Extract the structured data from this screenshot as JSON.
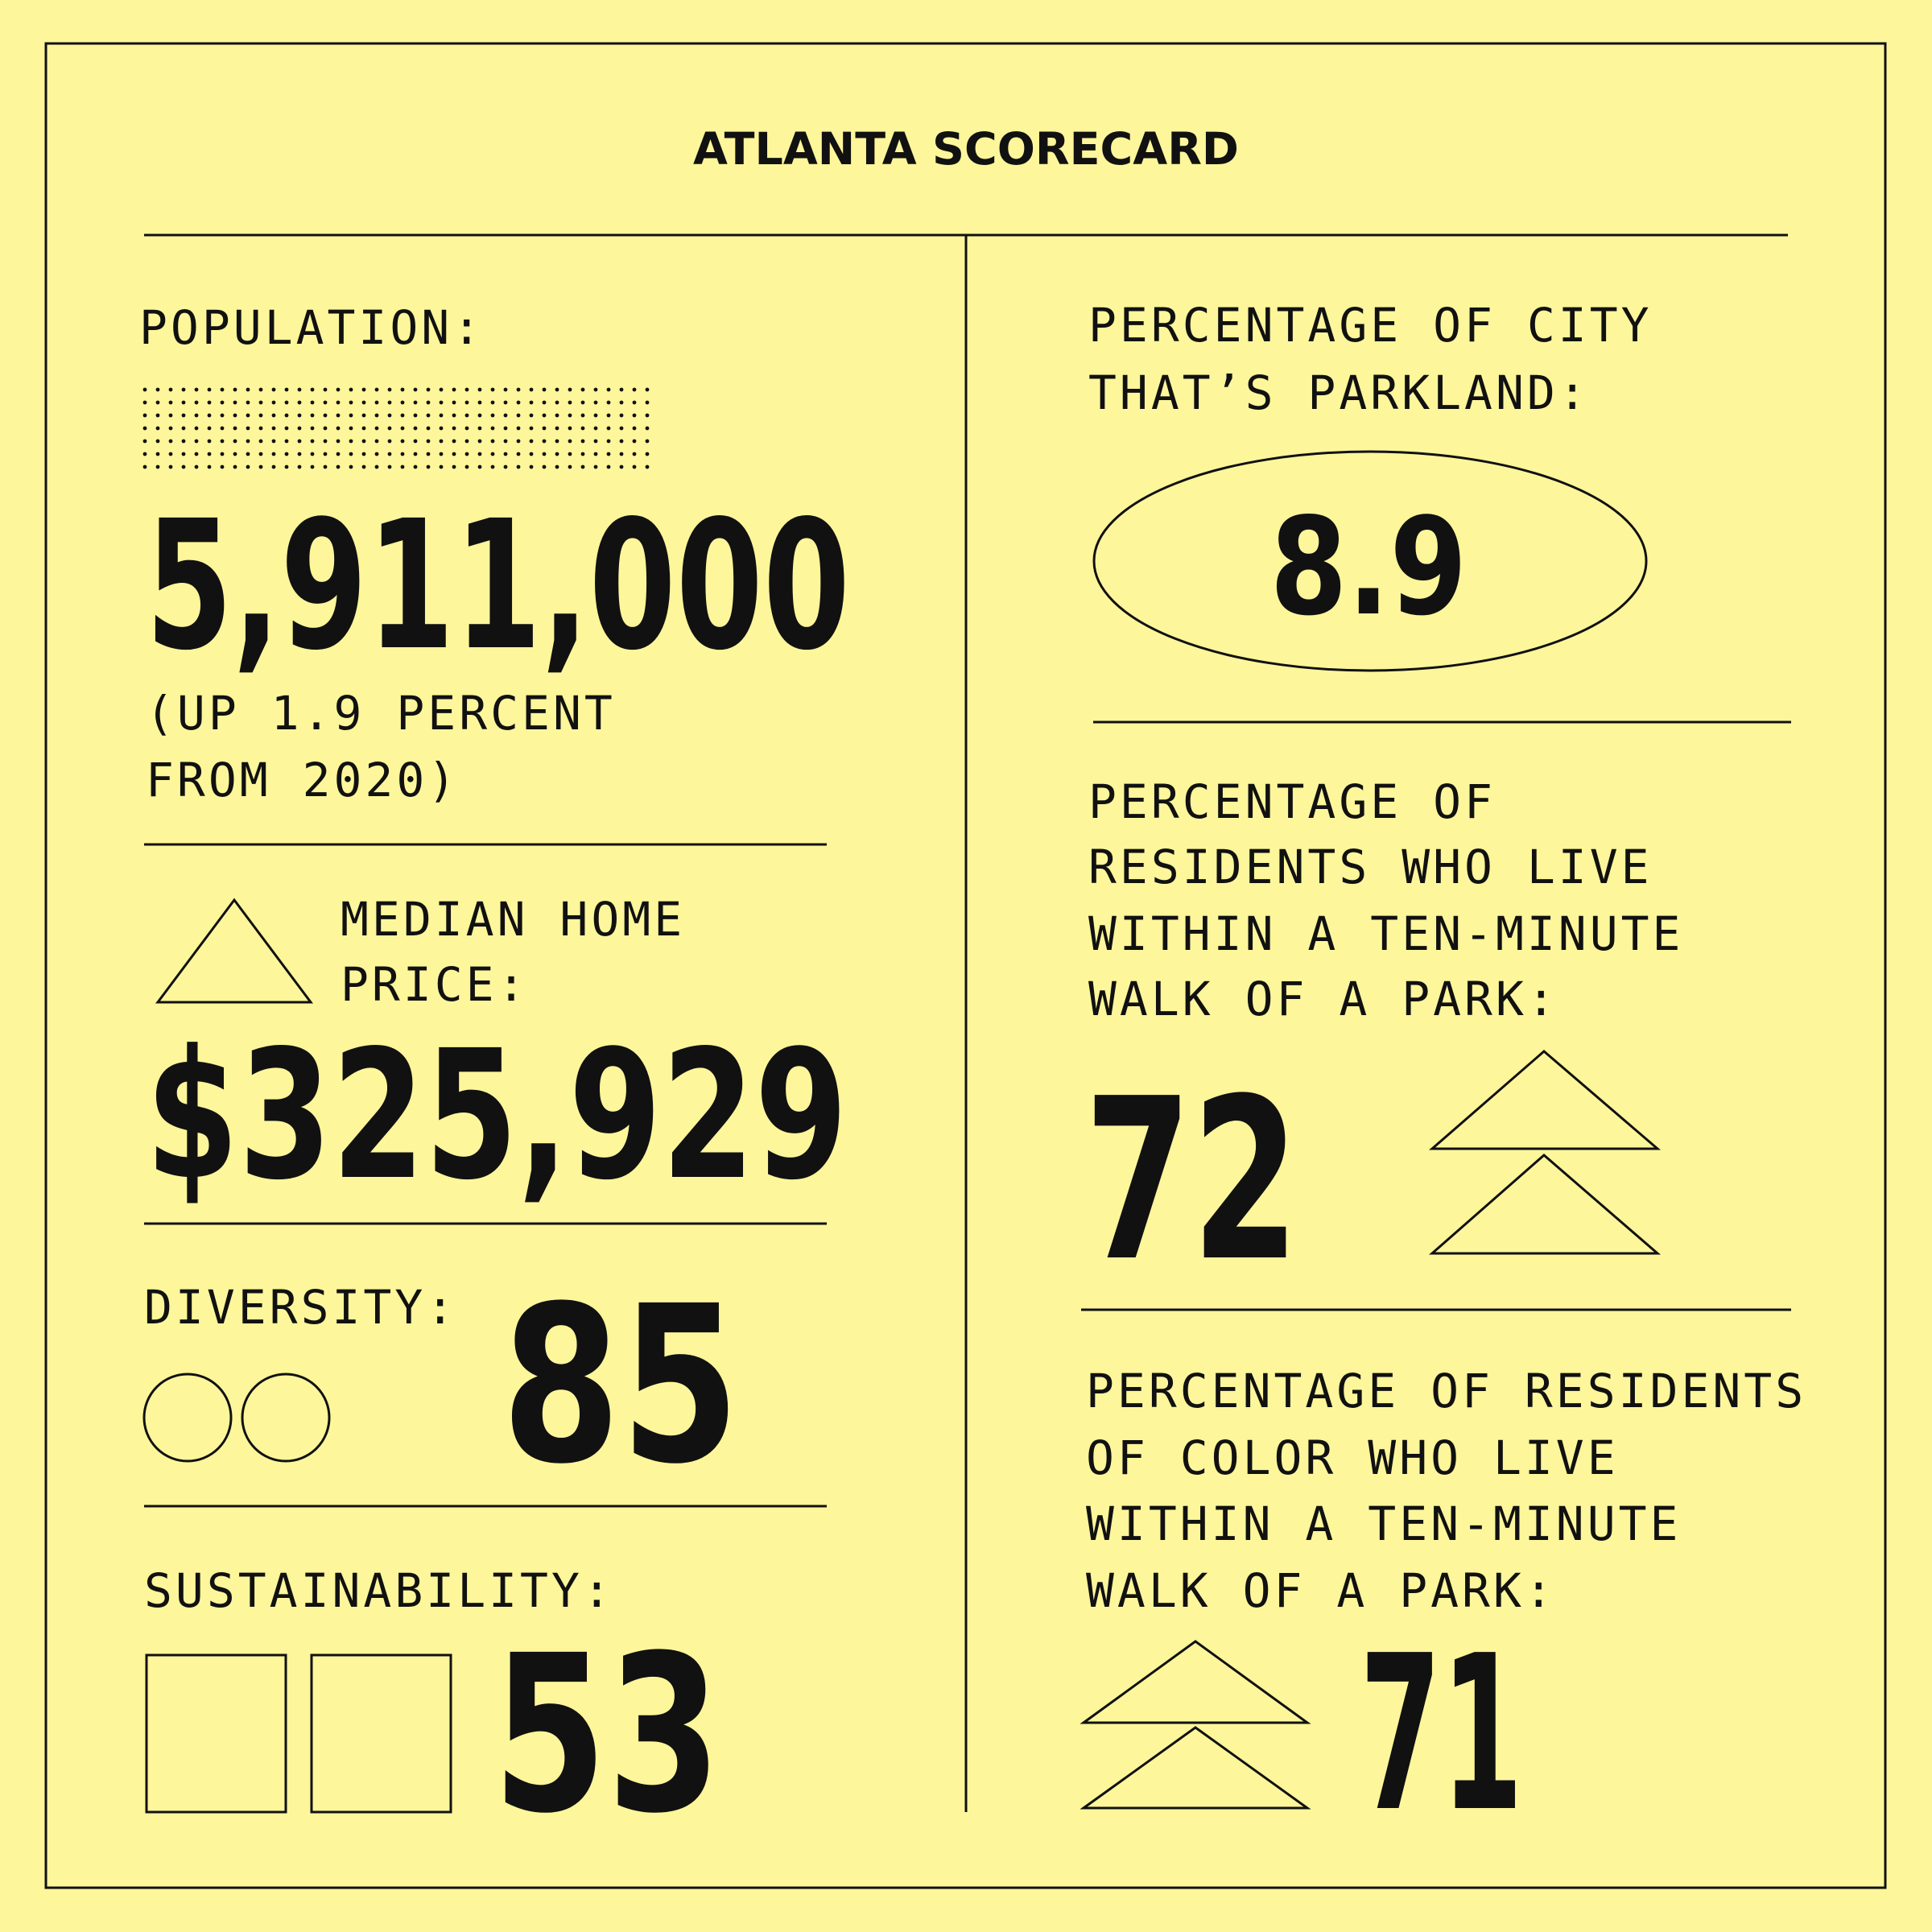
{
  "header": {
    "title": "ATLANTA SCORECARD"
  },
  "population": {
    "label": "POPULATION:",
    "value": "5,911,000",
    "note_lines": [
      "(UP 1.9 PERCENT",
      "FROM 2020)"
    ]
  },
  "home_price": {
    "label_lines": [
      "MEDIAN HOME",
      "PRICE:"
    ],
    "value": "$325,929"
  },
  "diversity": {
    "label": "DIVERSITY:",
    "value": "85"
  },
  "sustainability": {
    "label": "SUSTAINABILITY:",
    "value": "53"
  },
  "parkland": {
    "label_lines": [
      "PERCENTAGE OF CITY",
      "THAT’S PARKLAND:"
    ],
    "value": "8.9"
  },
  "park_access": {
    "label_lines": [
      "PERCENTAGE OF",
      "RESIDENTS WHO LIVE",
      "WITHIN A TEN-MINUTE",
      "WALK OF A PARK:"
    ],
    "value": "72"
  },
  "park_access_color": {
    "label_lines": [
      "PERCENTAGE OF RESIDENTS",
      "OF COLOR WHO LIVE",
      "WITHIN A TEN-MINUTE",
      "WALK OF A PARK:"
    ],
    "value": "71"
  }
}
